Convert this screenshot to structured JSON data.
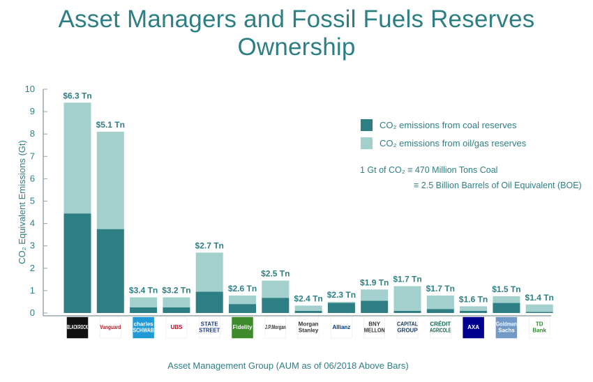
{
  "title": "Asset Managers and Fossil Fuels Reserves Ownership",
  "colors": {
    "coal": "#2e7f84",
    "oilgas": "#a3cfcd",
    "text": "#2e7f84"
  },
  "legend": {
    "coal": "CO₂ emissions from coal reserves",
    "oilgas": "CO₂ emissions from oil/gas reserves"
  },
  "note": {
    "line1": "1 Gt of  CO₂  ≡ 470 Million Tons Coal",
    "line2": "≡ 2.5 Billion Barrels of Oil Equivalent (BOE)"
  },
  "chart_data": {
    "type": "bar",
    "stacked": true,
    "title": "Asset Managers and Fossil Fuels Reserves Ownership",
    "xlabel": "Asset Management Group (AUM as of 06/2018 Above Bars)",
    "ylabel": "CO₂ Equivalent Emissions (Gt)",
    "ylim": [
      0,
      10
    ],
    "yticks": [
      0,
      1,
      2,
      3,
      4,
      5,
      6,
      7,
      8,
      9,
      10
    ],
    "categories": [
      "BlackRock",
      "Vanguard",
      "Charles Schwab",
      "UBS",
      "State Street",
      "Fidelity",
      "J.P.Morgan",
      "Morgan Stanley",
      "Allianz",
      "BNY Mellon",
      "Capital Group",
      "Crédit Agricole",
      "AXA",
      "Goldman Sachs",
      "TD Bank"
    ],
    "aum_labels": [
      "$6.3 Tn",
      "$5.1 Tn",
      "$3.4 Tn",
      "$3.2 Tn",
      "$2.7 Tn",
      "$2.6 Tn",
      "$2.5 Tn",
      "$2.4 Tn",
      "$2.3 Tn",
      "$1.9 Tn",
      "$1.7 Tn",
      "$1.7 Tn",
      "$1.6 Tn",
      "$1.5 Tn",
      "$1.4 Tn"
    ],
    "series": [
      {
        "name": "CO₂ emissions from coal reserves",
        "values": [
          4.45,
          3.75,
          0.25,
          0.25,
          0.95,
          0.4,
          0.68,
          0.1,
          0.45,
          0.55,
          0.1,
          0.18,
          0.1,
          0.45,
          0.05
        ]
      },
      {
        "name": "CO₂ emissions from oil/gas reserves",
        "values": [
          4.95,
          4.35,
          0.45,
          0.45,
          1.75,
          0.38,
          0.77,
          0.23,
          0.05,
          0.5,
          1.1,
          0.6,
          0.2,
          0.3,
          0.33
        ]
      }
    ],
    "legend_position": "top-right",
    "grid": false
  },
  "logos": [
    {
      "text": "BLACKROCK",
      "bg": "#111111",
      "fg": "#ffffff"
    },
    {
      "text": "Vanguard",
      "bg": "#ffffff",
      "fg": "#a31d24"
    },
    {
      "text": "charles SCHWAB",
      "bg": "#1f9ad6",
      "fg": "#ffffff"
    },
    {
      "text": "UBS",
      "bg": "#ffffff",
      "fg": "#d0001c"
    },
    {
      "text": "STATE STREET",
      "bg": "#ffffff",
      "fg": "#1a3a80"
    },
    {
      "text": "Fidelity",
      "bg": "#3f8a2c",
      "fg": "#ffffff"
    },
    {
      "text": "J.P.Morgan",
      "bg": "#ffffff",
      "fg": "#333333"
    },
    {
      "text": "Morgan Stanley",
      "bg": "#ffffff",
      "fg": "#333333"
    },
    {
      "text": "Allianz",
      "bg": "#ffffff",
      "fg": "#003781"
    },
    {
      "text": "BNY MELLON",
      "bg": "#ffffff",
      "fg": "#333333"
    },
    {
      "text": "CAPITAL GROUP",
      "bg": "#ffffff",
      "fg": "#1a3a60"
    },
    {
      "text": "CRÉDIT AGRICOLE",
      "bg": "#ffffff",
      "fg": "#006a4e"
    },
    {
      "text": "AXA",
      "bg": "#00008f",
      "fg": "#ffffff"
    },
    {
      "text": "Goldman Sachs",
      "bg": "#7399c6",
      "fg": "#ffffff"
    },
    {
      "text": "TD Bank",
      "bg": "#ffffff",
      "fg": "#2a8c29"
    }
  ]
}
